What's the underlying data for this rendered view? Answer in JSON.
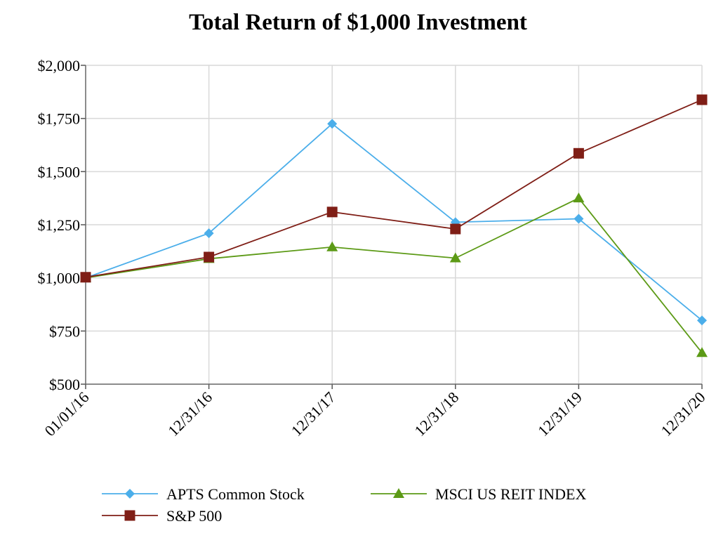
{
  "chart_data": {
    "type": "line",
    "title": "Total Return of $1,000 Investment",
    "categories": [
      "01/01/16",
      "12/31/16",
      "12/31/17",
      "12/31/18",
      "12/31/19",
      "12/31/20"
    ],
    "ylim": [
      500,
      2000
    ],
    "yticks": [
      500,
      750,
      1000,
      1250,
      1500,
      1750,
      2000
    ],
    "ytick_labels": [
      "$500",
      "$750",
      "$1,000",
      "$1,250",
      "$1,500",
      "$1,750",
      "$2,000"
    ],
    "grid": true,
    "legend_position": "bottom",
    "series": [
      {
        "name": "APTS Common Stock",
        "values": [
          1000,
          1210,
          1725,
          1262,
          1278,
          800
        ],
        "color": "#4BAEEA",
        "marker": "diamond"
      },
      {
        "name": "MSCI US REIT INDEX",
        "values": [
          1000,
          1090,
          1145,
          1093,
          1375,
          648
        ],
        "color": "#5C9A16",
        "marker": "triangle"
      },
      {
        "name": "S&P 500",
        "values": [
          1003,
          1098,
          1310,
          1230,
          1586,
          1838
        ],
        "color": "#7F1E16",
        "marker": "square"
      }
    ]
  }
}
